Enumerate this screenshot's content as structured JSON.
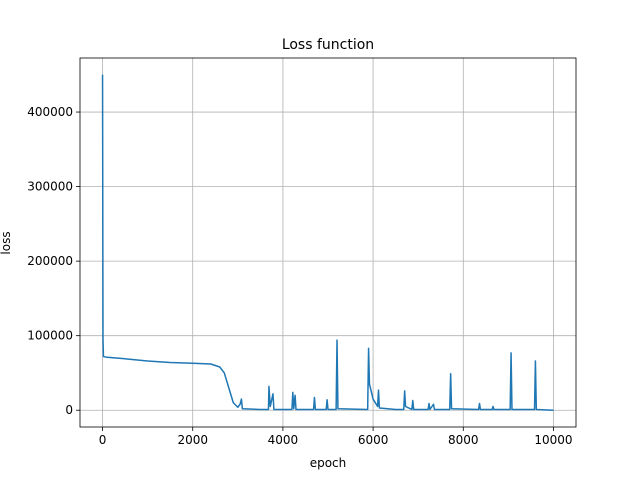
{
  "chart_data": {
    "type": "line",
    "title": "Loss function",
    "x_label": "epoch",
    "y_label": "loss",
    "x": [
      0,
      10,
      20,
      100,
      500,
      1000,
      1500,
      2000,
      2400,
      2600,
      2700,
      2800,
      2900,
      3000,
      3050,
      3080,
      3100,
      3500,
      3680,
      3690,
      3720,
      3780,
      3800,
      4200,
      4220,
      4240,
      4270,
      4290,
      4680,
      4700,
      4720,
      4960,
      4980,
      5000,
      5180,
      5200,
      5220,
      5880,
      5900,
      5920,
      6000,
      6100,
      6120,
      6140,
      6500,
      6680,
      6700,
      6720,
      6860,
      6880,
      6900,
      7220,
      7240,
      7260,
      7340,
      7360,
      7700,
      7720,
      7740,
      8340,
      8360,
      8380,
      8640,
      8660,
      8680,
      9040,
      9060,
      9080,
      9580,
      9600,
      9620,
      10000
    ],
    "series": [
      {
        "name": "loss",
        "color": "#1f77b4",
        "values": [
          450000,
          95000,
          72000,
          71000,
          69000,
          66000,
          64000,
          63000,
          62000,
          58000,
          50000,
          30000,
          10000,
          4000,
          8000,
          15000,
          2000,
          1000,
          1000,
          32000,
          5000,
          22000,
          1000,
          1000,
          24000,
          2000,
          20000,
          1000,
          1000,
          17000,
          1000,
          1000,
          14000,
          1000,
          1000,
          94000,
          2000,
          1000,
          83000,
          35000,
          15000,
          5000,
          27000,
          3000,
          1000,
          1000,
          26000,
          5000,
          1000,
          13000,
          1000,
          1000,
          9000,
          1000,
          8000,
          1000,
          1000,
          49000,
          2000,
          1000,
          9000,
          1000,
          1000,
          5000,
          1000,
          1000,
          77000,
          1000,
          1000,
          66000,
          1000,
          0
        ]
      }
    ],
    "xlim": [
      -500,
      10500
    ],
    "ylim": [
      -22500,
      472500
    ],
    "xticks": [
      0,
      2000,
      4000,
      6000,
      8000,
      10000
    ],
    "yticks": [
      0,
      100000,
      200000,
      300000,
      400000
    ],
    "grid": true
  }
}
